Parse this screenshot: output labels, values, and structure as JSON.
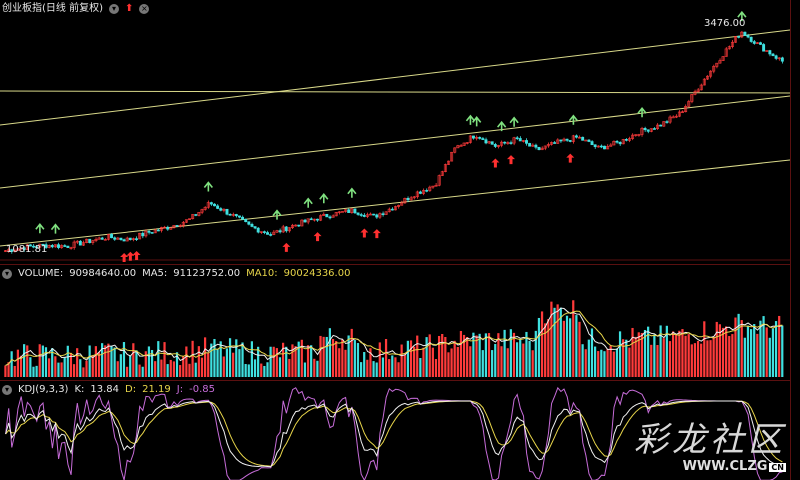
{
  "price": {
    "title": "创业板指(日线 前复权)",
    "high_label": "3476.00",
    "low_label": "1081.81",
    "colors": {
      "up": "#ff3b3b",
      "down": "#3fe0e0",
      "channel": "#d9d98a",
      "buy": "#7fe07f",
      "sell": "#ff3030"
    }
  },
  "volume": {
    "label": "VOLUME:",
    "value": "90984640.00",
    "ma5_label": "MA5:",
    "ma5": "91123752.00",
    "ma10_label": "MA10:",
    "ma10": "90024336.00"
  },
  "kdj": {
    "label": "KDJ(9,3,3)",
    "k_label": "K:",
    "k": "13.84",
    "d_label": "D:",
    "d": "21.19",
    "j_label": "J:",
    "j": "-0.85"
  },
  "watermark": {
    "text": "彩龙社区",
    "url": "WWW.CLZG",
    "suffix": "CN"
  },
  "chart_data": [
    {
      "type": "line",
      "title": "创业板指(日线 前复权)",
      "annotations": [
        "3476.00",
        "1081.81"
      ],
      "y_min_label": 1081.81,
      "y_max_label": 3476.0,
      "close_path": [
        1081.81,
        1120,
        1140,
        1130,
        1180,
        1230,
        1200,
        1280,
        1340,
        1420,
        1600,
        1480,
        1340,
        1260,
        1350,
        1420,
        1480,
        1520,
        1450,
        1560,
        1700,
        1800,
        2200,
        2350,
        2220,
        2300,
        2180,
        2260,
        2320,
        2200,
        2260,
        2380,
        2450,
        2580,
        2900,
        3200,
        3476.0,
        3300,
        3150
      ]
    },
    {
      "type": "bar",
      "title": "VOLUME",
      "series": [
        {
          "name": "VOLUME",
          "values": [
            90984640.0
          ]
        },
        {
          "name": "MA5",
          "values": [
            91123752.0
          ]
        },
        {
          "name": "MA10",
          "values": [
            90024336.0
          ]
        }
      ]
    },
    {
      "type": "line",
      "title": "KDJ(9,3,3)",
      "series": [
        {
          "name": "K",
          "values": [
            13.84
          ]
        },
        {
          "name": "D",
          "values": [
            21.19
          ]
        },
        {
          "name": "J",
          "values": [
            -0.85
          ]
        }
      ]
    }
  ]
}
